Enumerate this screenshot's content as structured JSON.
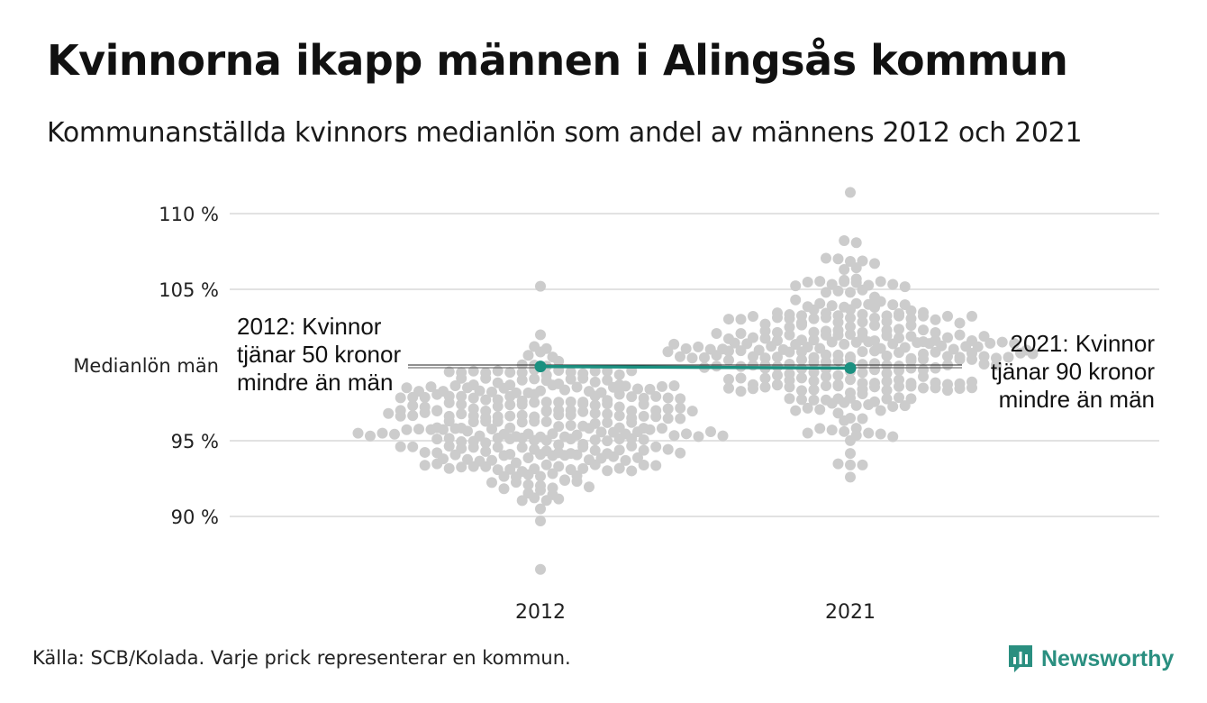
{
  "title": "Kvinnorna ikapp männen i Alingsås kommun",
  "subtitle": "Kommunanställda kvinnors medianlön som andel av männens 2012 och 2021",
  "footer": "Källa: SCB/Kolada. Varje prick representerar en kommun.",
  "brand": "Newsworthy",
  "colors": {
    "highlight": "#1b9080",
    "dots": "#cccccc",
    "grid": "#e2e2e2",
    "brand": "#2a8f80"
  },
  "chart_data": {
    "type": "scatter",
    "categories": [
      "2012",
      "2021"
    ],
    "yticks": [
      90,
      95,
      105,
      110
    ],
    "ytick_labels": [
      "90 %",
      "95 %",
      "105 %",
      "110 %"
    ],
    "reference": {
      "value": 100,
      "label": "Medianlön män"
    },
    "ylim": [
      86,
      111.5
    ],
    "highlight": {
      "2012": 99.9,
      "2021": 99.8
    },
    "annotations": {
      "2012": "2012: Kvinnor tjänar 50 kronor mindre än män",
      "2021": "2021: Kvinnor tjänar 90 kronor mindre än män"
    },
    "distributions": {
      "2012": {
        "mean": 96.0,
        "sd": 2.4,
        "n": 290,
        "min": 86.5,
        "max": 105.2
      },
      "2021": {
        "mean": 101.0,
        "sd": 2.6,
        "n": 290,
        "min": 92.6,
        "max": 111.4
      }
    },
    "grid": true
  }
}
